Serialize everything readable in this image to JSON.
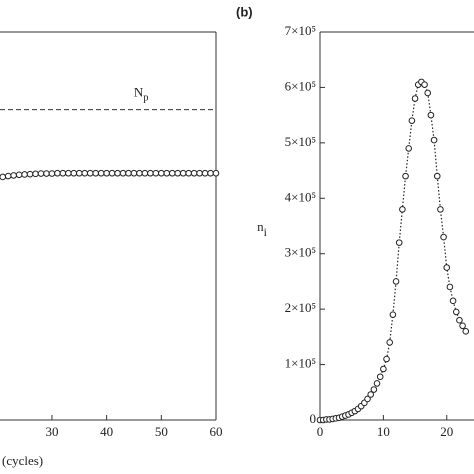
{
  "chart_data": [
    {
      "type": "scatter",
      "xlabel": "(cycles)",
      "x": [
        21,
        22,
        23,
        24,
        25,
        26,
        27,
        28,
        29,
        30,
        31,
        32,
        33,
        34,
        35,
        36,
        37,
        38,
        39,
        40,
        41,
        42,
        43,
        44,
        45,
        46,
        47,
        48,
        49,
        50,
        51,
        52,
        53,
        54,
        55,
        56,
        57,
        58,
        59,
        60
      ],
      "values": [
        0.783,
        0.786,
        0.788,
        0.79,
        0.791,
        0.792,
        0.793,
        0.794,
        0.794,
        0.794,
        0.795,
        0.795,
        0.795,
        0.795,
        0.795,
        0.795,
        0.795,
        0.795,
        0.795,
        0.795,
        0.795,
        0.795,
        0.795,
        0.795,
        0.795,
        0.795,
        0.795,
        0.795,
        0.795,
        0.795,
        0.795,
        0.795,
        0.795,
        0.795,
        0.795,
        0.795,
        0.795,
        0.795,
        0.795,
        0.795
      ],
      "color": "#222222",
      "xlim": [
        20.5,
        60
      ],
      "xticks": [
        30,
        40,
        50,
        60
      ],
      "ylim": [
        0,
        1.25
      ],
      "hlines": [
        {
          "value": 1,
          "style": "dashed",
          "label": {
            "base": "N",
            "sub": "p"
          }
        }
      ]
    },
    {
      "type": "line",
      "panel_label": "(b)",
      "ylabel": {
        "base": "n",
        "sub": "i"
      },
      "x": [
        0,
        0.5,
        1,
        1.5,
        2,
        2.5,
        3,
        3.5,
        4,
        4.5,
        5,
        5.5,
        6,
        6.5,
        7,
        7.5,
        8,
        8.5,
        9,
        9.5,
        10,
        10.5,
        11,
        11.5,
        12,
        12.5,
        13,
        13.5,
        14,
        14.5,
        15,
        15.5,
        16,
        16.5,
        17,
        17.5,
        18,
        18.5,
        19,
        19.5,
        20,
        20.5,
        21,
        21.5,
        22,
        22.5,
        23
      ],
      "values": [
        0,
        0,
        1000,
        1000,
        2000,
        3000,
        4000,
        6000,
        8000,
        10000,
        13000,
        16000,
        20000,
        25000,
        31000,
        38000,
        46000,
        55000,
        66000,
        78000,
        92000,
        110000,
        140000,
        190000,
        250000,
        320000,
        380000,
        440000,
        490000,
        540000,
        580000,
        605000,
        610000,
        605000,
        590000,
        550000,
        505000,
        440000,
        380000,
        330000,
        275000,
        240000,
        215000,
        195000,
        180000,
        170000,
        160000
      ],
      "color": "#222222",
      "linestyle": "dotted",
      "xlim": [
        0,
        24.3
      ],
      "xticks": [
        0,
        10,
        20
      ],
      "ylim": [
        0,
        700000
      ],
      "yticks": [
        0,
        {
          "value": 100000,
          "label": "1×10⁵"
        },
        {
          "value": 200000,
          "label": "2×10⁵"
        },
        {
          "value": 300000,
          "label": "3×10⁵"
        },
        {
          "value": 400000,
          "label": "4×10⁵"
        },
        {
          "value": 500000,
          "label": "5×10⁵"
        },
        {
          "value": 600000,
          "label": "6×10⁵"
        },
        {
          "value": 700000,
          "label": "7×10⁵"
        }
      ]
    }
  ]
}
